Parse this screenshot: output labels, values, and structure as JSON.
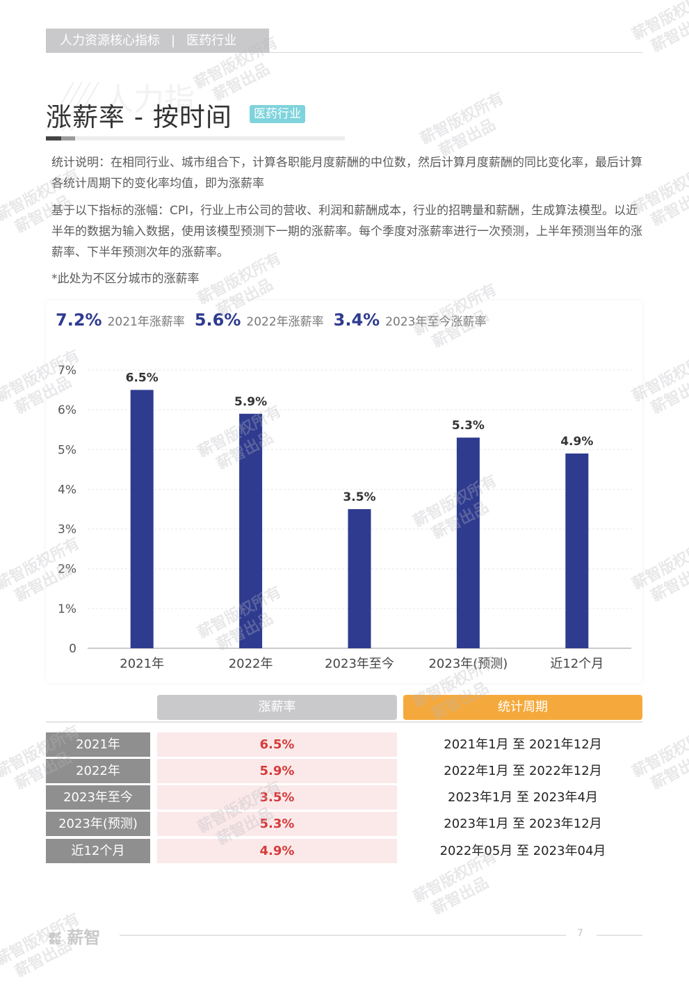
{
  "header": {
    "category": "人力资源核心指标",
    "separator": "|",
    "industry": "医药行业"
  },
  "title": {
    "text": "涨薪率 - 按时间",
    "badge": "医药行业",
    "background_text": "人力指"
  },
  "notes": [
    "统计说明：在相同行业、城市组合下，计算各职能月度薪酬的中位数，然后计算月度薪酬的同比变化率，最后计算各统计周期下的变化率均值，即为涨薪率",
    "基于以下指标的涨幅：CPI，行业上市公司的营收、利润和薪酬成本，行业的招聘量和薪酬，生成算法模型。以近半年的数据为输入数据，使用该模型预测下一期的涨薪率。每个季度对涨薪率进行一次预测，上半年预测当年的涨薪率、下半年预测次年的涨薪率。",
    "*此处为不区分城市的涨薪率"
  ],
  "kpis": [
    {
      "value": "7.2%",
      "label": "2021年涨薪率"
    },
    {
      "value": "5.6%",
      "label": "2022年涨薪率"
    },
    {
      "value": "3.4%",
      "label": "2023年至今涨薪率"
    }
  ],
  "chart_data": {
    "type": "bar",
    "title": "",
    "xlabel": "",
    "ylabel": "",
    "categories": [
      "2021年",
      "2022年",
      "2023年至今",
      "2023年(预测)",
      "近12个月"
    ],
    "values": [
      6.5,
      5.9,
      3.5,
      5.3,
      4.9
    ],
    "data_labels": [
      "6.5%",
      "5.9%",
      "3.5%",
      "5.3%",
      "4.9%"
    ],
    "ylim": [
      0,
      7
    ],
    "yticks": [
      0,
      1,
      2,
      3,
      4,
      5,
      6,
      7
    ],
    "ytick_labels": [
      "0",
      "1%",
      "2%",
      "3%",
      "4%",
      "5%",
      "6%",
      "7%"
    ],
    "grid": true,
    "bar_color": "#2e3b8f"
  },
  "table": {
    "col_rate": "涨薪率",
    "col_period": "统计周期",
    "header_rate_color": "#c9c9cb",
    "header_period_color": "#f5a93c",
    "rows": [
      {
        "label": "2021年",
        "rate": "6.5%",
        "period": "2021年1月 至 2021年12月"
      },
      {
        "label": "2022年",
        "rate": "5.9%",
        "period": "2022年1月 至 2022年12月"
      },
      {
        "label": "2023年至今",
        "rate": "3.5%",
        "period": "2023年1月 至 2023年4月"
      },
      {
        "label": "2023年(预测)",
        "rate": "5.3%",
        "period": "2023年1月 至 2023年12月"
      },
      {
        "label": "近12个月",
        "rate": "4.9%",
        "period": "2022年05月 至 2023年04月"
      }
    ]
  },
  "footer": {
    "brand": "薪智",
    "page": "7"
  },
  "watermark": {
    "line1": "薪智版权所有",
    "line2": "薪智出品"
  }
}
